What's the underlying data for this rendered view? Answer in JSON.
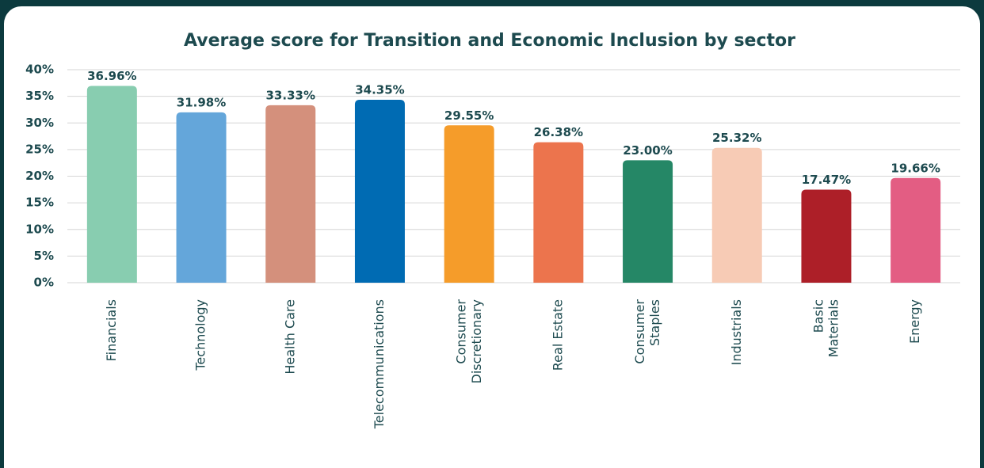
{
  "chart_data": {
    "type": "bar",
    "title": "Average score for Transition and Economic Inclusion by sector",
    "categories": [
      "Financials",
      "Technology",
      "Health Care",
      "Telecommunications",
      "Consumer\nDiscretionary",
      "Real Estate",
      "Consumer\nStaples",
      "Industrials",
      "Basic\nMaterials",
      "Energy"
    ],
    "values": [
      36.96,
      31.98,
      33.33,
      34.35,
      29.55,
      26.38,
      23.0,
      25.32,
      17.47,
      19.66
    ],
    "value_labels": [
      "36.96%",
      "31.98%",
      "33.33%",
      "34.35%",
      "29.55%",
      "26.38%",
      "23.00%",
      "25.32%",
      "17.47%",
      "19.66%"
    ],
    "colors": [
      "#88cdb0",
      "#64a6da",
      "#d4907c",
      "#006bb3",
      "#f59c2a",
      "#ec744d",
      "#258766",
      "#f7cbb5",
      "#ad1f28",
      "#e35d83"
    ],
    "ylim": [
      0,
      40
    ],
    "yticks": [
      {
        "value": 0,
        "label": "0%"
      },
      {
        "value": 5,
        "label": "5%"
      },
      {
        "value": 10,
        "label": "10%"
      },
      {
        "value": 15,
        "label": "15%"
      },
      {
        "value": 20,
        "label": "20%"
      },
      {
        "value": 25,
        "label": "25%"
      },
      {
        "value": 30,
        "label": "30%"
      },
      {
        "value": 35,
        "label": "35%"
      },
      {
        "value": 40,
        "label": "40%"
      }
    ],
    "grid": true
  }
}
